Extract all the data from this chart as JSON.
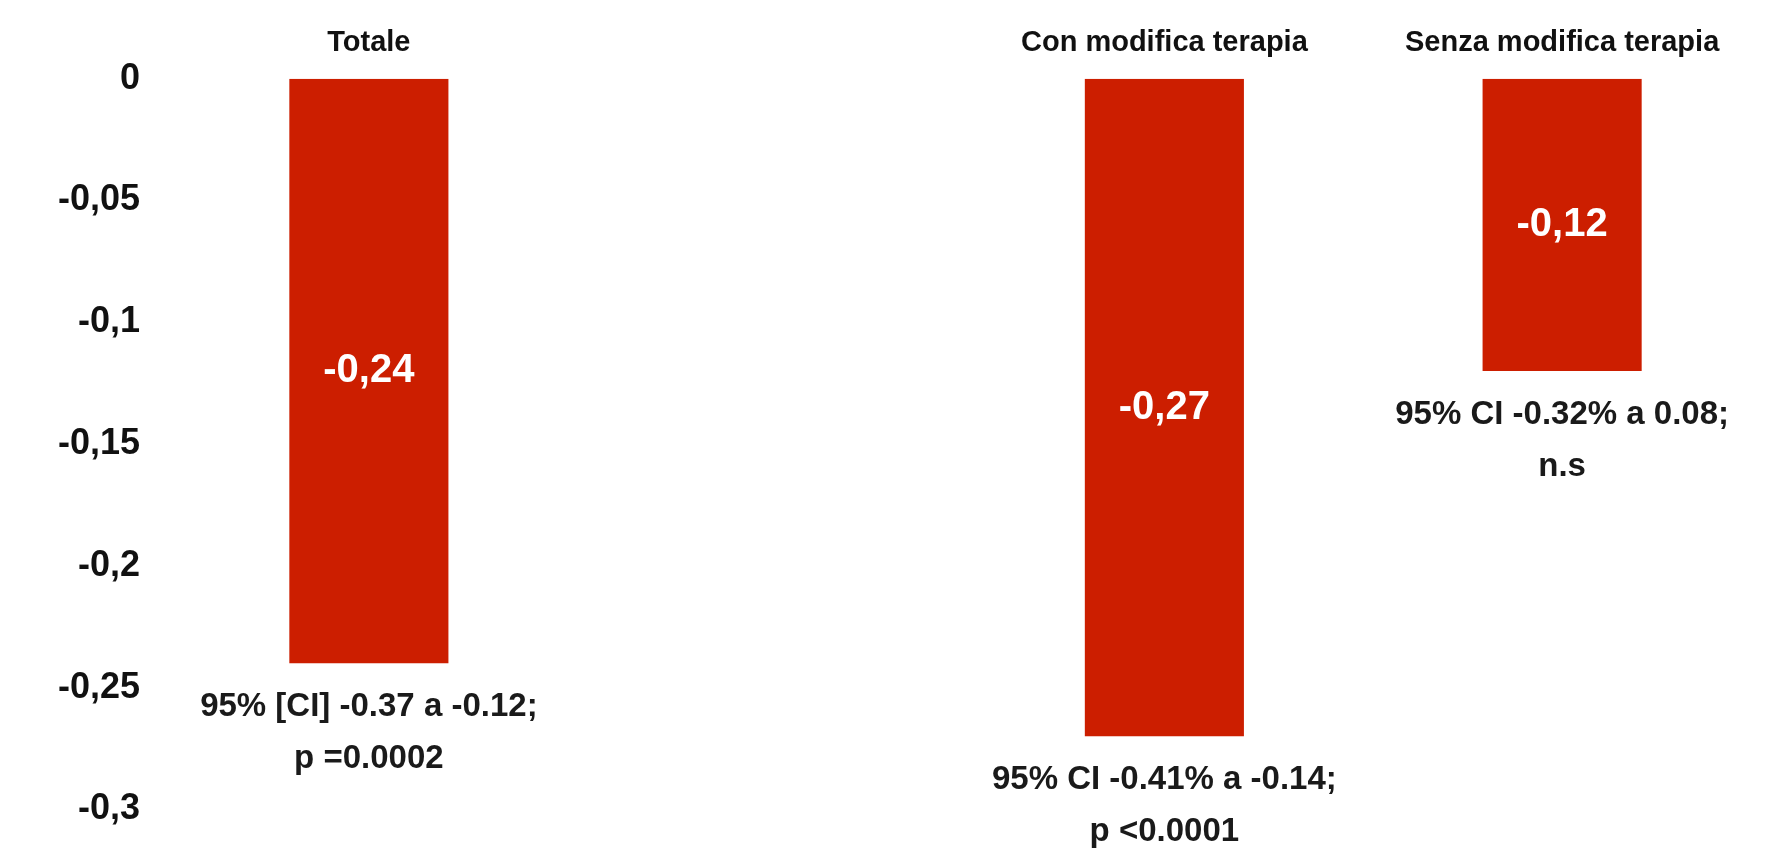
{
  "chart_data": {
    "type": "bar",
    "categories": [
      "Totale",
      null,
      "Con modifica terapia",
      "Senza modifica terapia"
    ],
    "values": [
      -0.24,
      null,
      -0.27,
      -0.12
    ],
    "value_labels": [
      "-0,24",
      null,
      "-0,27",
      "-0,12"
    ],
    "color": "#cc1e00",
    "ylim": [
      -0.3,
      0
    ],
    "yticks": [
      {
        "value": 0,
        "label": "0"
      },
      {
        "value": -0.05,
        "label": "-0,05"
      },
      {
        "value": -0.1,
        "label": "-0,1"
      },
      {
        "value": -0.15,
        "label": "-0,15"
      },
      {
        "value": -0.2,
        "label": "-0,2"
      },
      {
        "value": -0.25,
        "label": "-0,25"
      },
      {
        "value": -0.3,
        "label": "-0,3"
      }
    ],
    "grid": false,
    "legend": false,
    "annotations": [
      {
        "text": "95% [CI] -0.37 a -0.12;\np =0.0002",
        "x": "Totale",
        "y": -0.24
      },
      {
        "text": "95% CI -0.41% a -0.14;\np <0.0001",
        "x": "Con modifica terapia",
        "y": -0.27
      },
      {
        "text": "95% CI -0.32% a 0.08;\nn.s",
        "x": "Senza modifica terapia",
        "y": -0.12
      }
    ]
  }
}
